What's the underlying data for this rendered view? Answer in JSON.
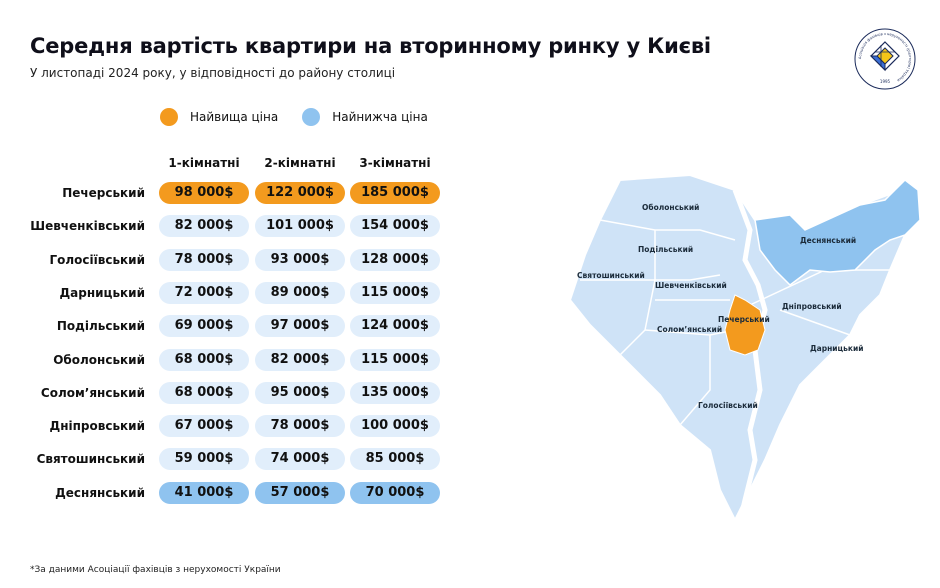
{
  "header": {
    "title": "Середня вартість квартири на вторинному ринку у Києві",
    "subtitle": "У листопаді 2024 року, у відповідності до району столиці"
  },
  "legend": {
    "highest": {
      "label": "Найвища ціна",
      "color": "#f39a1e"
    },
    "lowest": {
      "label": "Найнижча ціна",
      "color": "#8fc3ef"
    }
  },
  "colors": {
    "default_cell": "#e1eefb",
    "map_fill": "#cfe3f7",
    "map_river": "#ffffff"
  },
  "chart_data": {
    "type": "table",
    "columns": [
      "1-кімнатні",
      "2-кімнатні",
      "3-кімнатні"
    ],
    "rows": [
      {
        "district": "Печерський",
        "values": [
          "98 000$",
          "122 000$",
          "185 000$"
        ],
        "highlight": "highest"
      },
      {
        "district": "Шевченківський",
        "values": [
          "82 000$",
          "101 000$",
          "154 000$"
        ],
        "highlight": ""
      },
      {
        "district": "Голосіївський",
        "values": [
          "78 000$",
          "93 000$",
          "128 000$"
        ],
        "highlight": ""
      },
      {
        "district": "Дарницький",
        "values": [
          "72 000$",
          "89 000$",
          "115 000$"
        ],
        "highlight": ""
      },
      {
        "district": "Подільський",
        "values": [
          "69 000$",
          "97 000$",
          "124 000$"
        ],
        "highlight": ""
      },
      {
        "district": "Оболонський",
        "values": [
          "68 000$",
          "82 000$",
          "115 000$"
        ],
        "highlight": ""
      },
      {
        "district": "Солом’янський",
        "values": [
          "68 000$",
          "95 000$",
          "135 000$"
        ],
        "highlight": ""
      },
      {
        "district": "Дніпровський",
        "values": [
          "67 000$",
          "78 000$",
          "100 000$"
        ],
        "highlight": ""
      },
      {
        "district": "Святошинський",
        "values": [
          "59 000$",
          "74 000$",
          "85 000$"
        ],
        "highlight": ""
      },
      {
        "district": "Деснянський",
        "values": [
          "41 000$",
          "57 000$",
          "70 000$"
        ],
        "highlight": "lowest"
      }
    ]
  },
  "map": {
    "labels": {
      "obolonskyi": "Оболонський",
      "podilskyi": "Подільський",
      "sviatoshynskyi": "Святошинський",
      "shevchenkivskyi": "Шевченківський",
      "solomianskyi": "Солом’янський",
      "pecherskyi": "Печерський",
      "desnianskyi": "Деснянський",
      "dniprovskyi": "Дніпровський",
      "darnytskyi": "Дарницький",
      "holosiivskyi": "Голосіївський"
    }
  },
  "logo": {
    "ring_text": "Асоціація фахівців з нерухомості (ріелторів) України",
    "year": "1995"
  },
  "footnote": "*За даними Асоціації фахівців з нерухомості України"
}
